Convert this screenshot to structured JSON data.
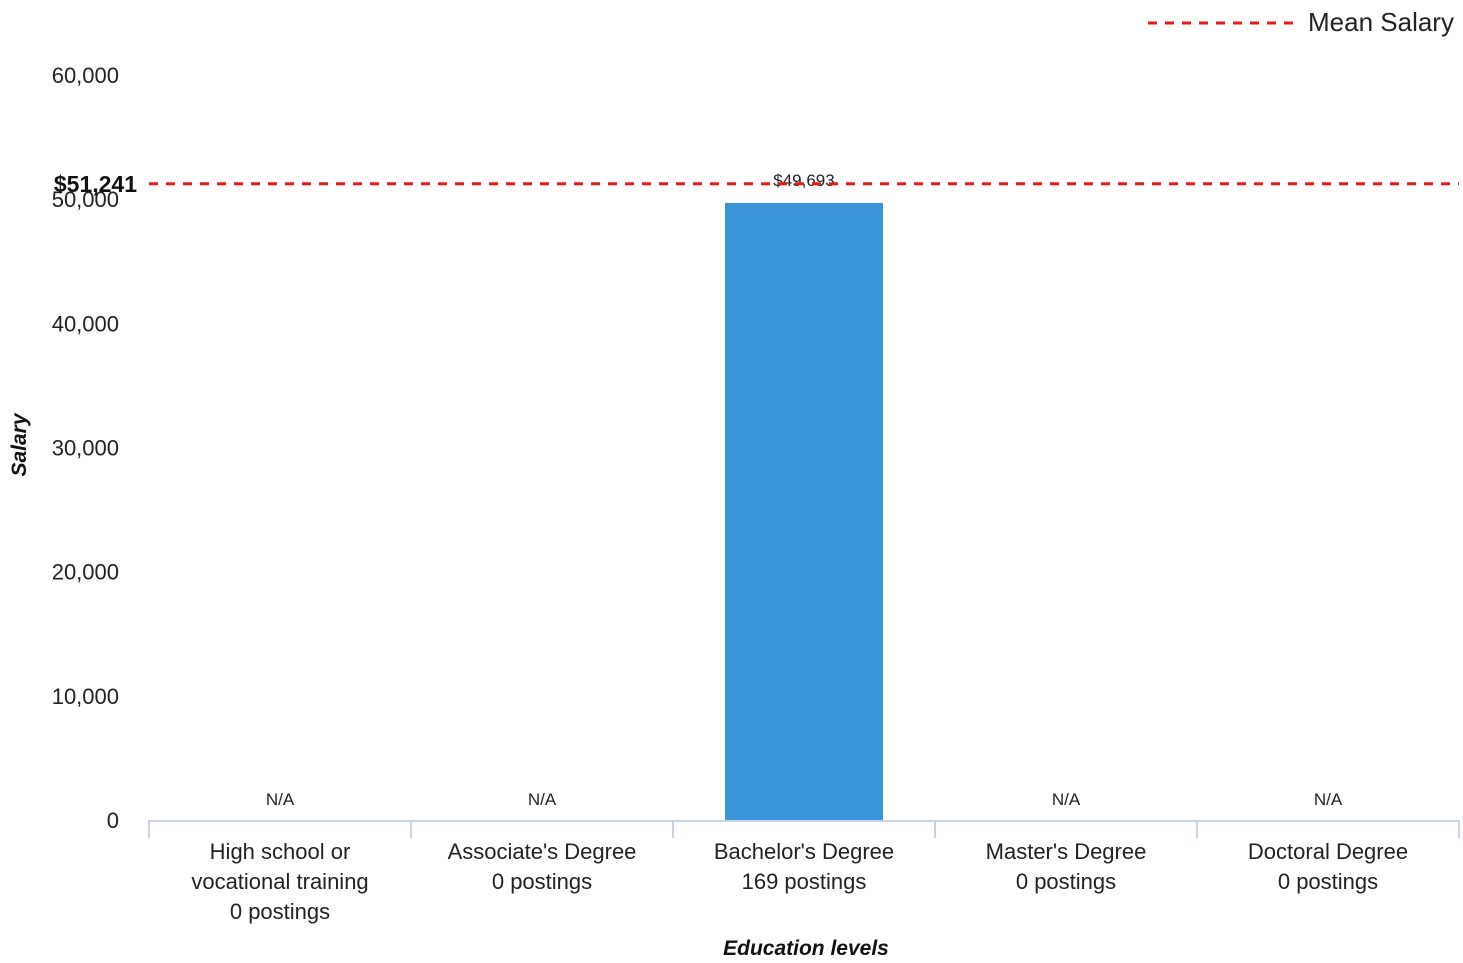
{
  "chart_data": {
    "type": "bar",
    "categories": [
      [
        "High school or",
        "vocational training",
        "0 postings"
      ],
      [
        "Associate's Degree",
        "0 postings"
      ],
      [
        "Bachelor's Degree",
        "169 postings"
      ],
      [
        "Master's Degree",
        "0 postings"
      ],
      [
        "Doctoral Degree",
        "0 postings"
      ]
    ],
    "values": [
      null,
      null,
      49693,
      null,
      null
    ],
    "data_labels": [
      "N/A",
      "N/A",
      "$49,693",
      "N/A",
      "N/A"
    ],
    "xlabel": "Education levels",
    "ylabel": "Salary",
    "ylim": [
      0,
      60000
    ],
    "yticks": [
      0,
      10000,
      20000,
      30000,
      40000,
      50000,
      60000
    ],
    "ytick_labels": [
      "0",
      "10,000",
      "20,000",
      "30,000",
      "40,000",
      "50,000",
      "60,000"
    ],
    "mean_line": {
      "value": 51241,
      "label": "$51,241",
      "legend": "Mean Salary"
    },
    "grid": false,
    "legend_position": "top-right",
    "colors": {
      "bar": "#3A95DB",
      "mean_line": "#E8191B",
      "axis": "#C8D3E6"
    }
  }
}
